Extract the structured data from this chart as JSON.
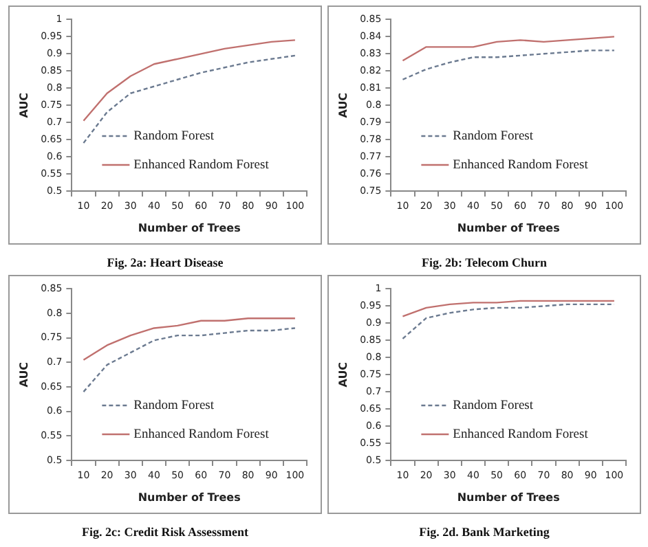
{
  "chart_data": [
    {
      "type": "line",
      "xlabel": "Number of Trees",
      "ylabel": "AUC",
      "categories": [
        "10",
        "20",
        "30",
        "40",
        "50",
        "60",
        "70",
        "80",
        "90",
        "100"
      ],
      "ylim": [
        0.5,
        1
      ],
      "yticks": [
        0.5,
        0.55,
        0.6,
        0.65,
        0.7,
        0.75,
        0.8,
        0.85,
        0.9,
        0.95,
        1
      ],
      "grid": false,
      "legend": "bottom",
      "marker": "none",
      "annotations": [
        "Fig. 2a: Heart Disease"
      ],
      "series": [
        {
          "name": "Random Forest",
          "color": "#6b7a90",
          "line_style": "dashed",
          "values": [
            0.64,
            0.73,
            0.785,
            0.805,
            0.825,
            0.845,
            0.86,
            0.875,
            0.885,
            0.895
          ]
        },
        {
          "name": "Enhanced Random Forest",
          "color": "#c0706e",
          "line_style": "solid",
          "values": [
            0.705,
            0.785,
            0.835,
            0.87,
            0.885,
            0.9,
            0.915,
            0.925,
            0.935,
            0.94
          ]
        }
      ]
    },
    {
      "type": "line",
      "xlabel": "Number of Trees",
      "ylabel": "AUC",
      "categories": [
        "10",
        "20",
        "30",
        "40",
        "50",
        "60",
        "70",
        "80",
        "90",
        "100"
      ],
      "ylim": [
        0.75,
        0.85
      ],
      "yticks": [
        0.75,
        0.76,
        0.77,
        0.78,
        0.79,
        0.8,
        0.81,
        0.82,
        0.83,
        0.84,
        0.85
      ],
      "grid": false,
      "legend": "bottom",
      "marker": "none",
      "annotations": [
        "Fig. 2b: Telecom Churn"
      ],
      "series": [
        {
          "name": "Random Forest",
          "color": "#6b7a90",
          "line_style": "dashed",
          "values": [
            0.815,
            0.821,
            0.825,
            0.828,
            0.828,
            0.829,
            0.83,
            0.831,
            0.832,
            0.832
          ]
        },
        {
          "name": "Enhanced Random Forest",
          "color": "#c0706e",
          "line_style": "solid",
          "values": [
            0.826,
            0.834,
            0.834,
            0.834,
            0.837,
            0.838,
            0.837,
            0.838,
            0.839,
            0.84
          ]
        }
      ]
    },
    {
      "type": "line",
      "xlabel": "Number of Trees",
      "ylabel": "AUC",
      "categories": [
        "10",
        "20",
        "30",
        "40",
        "50",
        "60",
        "70",
        "80",
        "90",
        "100"
      ],
      "ylim": [
        0.5,
        0.85
      ],
      "yticks": [
        0.5,
        0.55,
        0.6,
        0.65,
        0.7,
        0.75,
        0.8,
        0.85
      ],
      "grid": false,
      "legend": "bottom",
      "marker": "none",
      "annotations": [
        "Fig. 2c: Credit Risk Assessment"
      ],
      "series": [
        {
          "name": "Random Forest",
          "color": "#6b7a90",
          "line_style": "dashed",
          "values": [
            0.64,
            0.695,
            0.72,
            0.745,
            0.755,
            0.755,
            0.76,
            0.765,
            0.765,
            0.77
          ]
        },
        {
          "name": "Enhanced Random Forest",
          "color": "#c0706e",
          "line_style": "solid",
          "values": [
            0.705,
            0.735,
            0.755,
            0.77,
            0.775,
            0.785,
            0.785,
            0.79,
            0.79,
            0.79
          ]
        }
      ]
    },
    {
      "type": "line",
      "xlabel": "Number of Trees",
      "ylabel": "AUC",
      "categories": [
        "10",
        "20",
        "30",
        "40",
        "50",
        "60",
        "70",
        "80",
        "90",
        "100"
      ],
      "ylim": [
        0.5,
        1
      ],
      "yticks": [
        0.5,
        0.55,
        0.6,
        0.65,
        0.7,
        0.75,
        0.8,
        0.85,
        0.9,
        0.95,
        1
      ],
      "grid": false,
      "legend": "bottom",
      "marker": "none",
      "annotations": [
        "Fig. 2d. Bank Marketing"
      ],
      "series": [
        {
          "name": "Random Forest",
          "color": "#6b7a90",
          "line_style": "dashed",
          "values": [
            0.855,
            0.915,
            0.93,
            0.94,
            0.945,
            0.945,
            0.95,
            0.955,
            0.955,
            0.955
          ]
        },
        {
          "name": "Enhanced Random Forest",
          "color": "#c0706e",
          "line_style": "solid",
          "values": [
            0.92,
            0.945,
            0.955,
            0.96,
            0.96,
            0.965,
            0.965,
            0.965,
            0.965,
            0.965
          ]
        }
      ]
    }
  ]
}
